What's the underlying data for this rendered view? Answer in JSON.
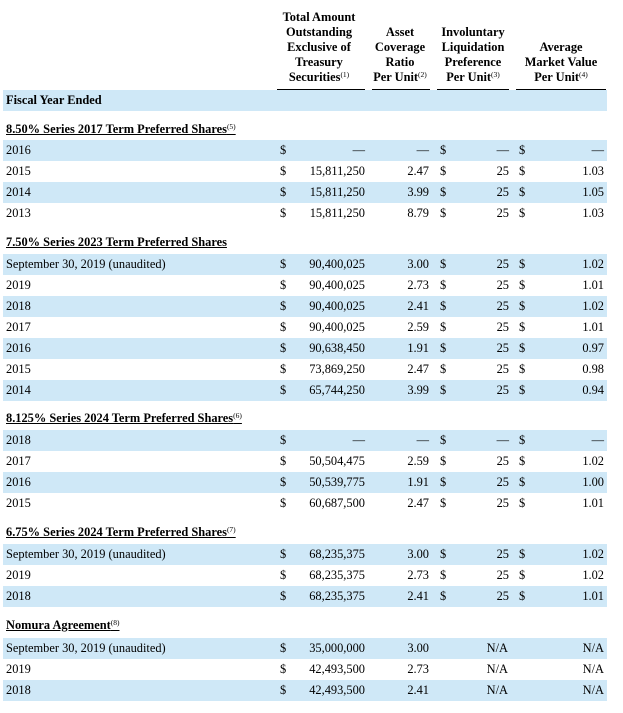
{
  "headers": [
    {
      "lines": [
        "Total Amount",
        "Outstanding",
        "Exclusive of",
        "Treasury",
        "Securities"
      ],
      "note": "(1)"
    },
    {
      "lines": [
        "Asset",
        "Coverage",
        "Ratio",
        "Per Unit"
      ],
      "note": "(2)"
    },
    {
      "lines": [
        "Involuntary",
        "Liquidation",
        "Preference",
        "Per Unit"
      ],
      "note": "(3)"
    },
    {
      "lines": [
        "Average",
        "Market Value",
        "Per Unit"
      ],
      "note": "(4)"
    }
  ],
  "fiscal_year_label": "Fiscal Year Ended",
  "dollar": "$",
  "rows": [
    {
      "type": "section",
      "label": "8.50% Series 2017 Term Preferred Shares",
      "note": "(5)"
    },
    {
      "type": "data",
      "label": "2016",
      "amount": "—",
      "coverage": "—",
      "liquidation": "—",
      "market": "—"
    },
    {
      "type": "data",
      "label": "2015",
      "amount": "15,811,250",
      "coverage": "2.47",
      "liquidation": "25",
      "market": "1.03"
    },
    {
      "type": "data",
      "label": "2014",
      "amount": "15,811,250",
      "coverage": "3.99",
      "liquidation": "25",
      "market": "1.05"
    },
    {
      "type": "data",
      "label": "2013",
      "amount": "15,811,250",
      "coverage": "8.79",
      "liquidation": "25",
      "market": "1.03"
    },
    {
      "type": "section",
      "label": "7.50% Series 2023 Term Preferred Shares",
      "note": ""
    },
    {
      "type": "data",
      "label": "September 30, 2019 (unaudited)",
      "amount": "90,400,025",
      "coverage": "3.00",
      "liquidation": "25",
      "market": "1.02"
    },
    {
      "type": "data",
      "label": "2019",
      "amount": "90,400,025",
      "coverage": "2.73",
      "liquidation": "25",
      "market": "1.01"
    },
    {
      "type": "data",
      "label": "2018",
      "amount": "90,400,025",
      "coverage": "2.41",
      "liquidation": "25",
      "market": "1.02"
    },
    {
      "type": "data",
      "label": "2017",
      "amount": "90,400,025",
      "coverage": "2.59",
      "liquidation": "25",
      "market": "1.01"
    },
    {
      "type": "data",
      "label": "2016",
      "amount": "90,638,450",
      "coverage": "1.91",
      "liquidation": "25",
      "market": "0.97"
    },
    {
      "type": "data",
      "label": "2015",
      "amount": "73,869,250",
      "coverage": "2.47",
      "liquidation": "25",
      "market": "0.98"
    },
    {
      "type": "data",
      "label": "2014",
      "amount": "65,744,250",
      "coverage": "3.99",
      "liquidation": "25",
      "market": "0.94"
    },
    {
      "type": "section",
      "label": "8.125% Series 2024 Term Preferred Shares",
      "note": "(6)"
    },
    {
      "type": "data",
      "label": "2018",
      "amount": "—",
      "coverage": "—",
      "liquidation": "—",
      "market": "—"
    },
    {
      "type": "data",
      "label": "2017",
      "amount": "50,504,475",
      "coverage": "2.59",
      "liquidation": "25",
      "market": "1.02"
    },
    {
      "type": "data",
      "label": "2016",
      "amount": "50,539,775",
      "coverage": "1.91",
      "liquidation": "25",
      "market": "1.00"
    },
    {
      "type": "data",
      "label": "2015",
      "amount": "60,687,500",
      "coverage": "2.47",
      "liquidation": "25",
      "market": "1.01"
    },
    {
      "type": "section",
      "label": "6.75% Series 2024 Term Preferred Shares",
      "note": "(7)"
    },
    {
      "type": "data",
      "label": "September 30, 2019 (unaudited)",
      "amount": "68,235,375",
      "coverage": "3.00",
      "liquidation": "25",
      "market": "1.02"
    },
    {
      "type": "data",
      "label": "2019",
      "amount": "68,235,375",
      "coverage": "2.73",
      "liquidation": "25",
      "market": "1.02"
    },
    {
      "type": "data",
      "label": "2018",
      "amount": "68,235,375",
      "coverage": "2.41",
      "liquidation": "25",
      "market": "1.01"
    },
    {
      "type": "section",
      "label": "Nomura Agreement",
      "note": "(8)"
    },
    {
      "type": "data",
      "label": "September 30, 2019 (unaudited)",
      "amount": "35,000,000",
      "coverage": "3.00",
      "liquidation": "N/A",
      "market": "N/A",
      "na": true
    },
    {
      "type": "data",
      "label": "2019",
      "amount": "42,493,500",
      "coverage": "2.73",
      "liquidation": "N/A",
      "market": "N/A",
      "na": true
    },
    {
      "type": "data",
      "label": "2018",
      "amount": "42,493,500",
      "coverage": "2.41",
      "liquidation": "N/A",
      "market": "N/A",
      "na": true
    }
  ]
}
